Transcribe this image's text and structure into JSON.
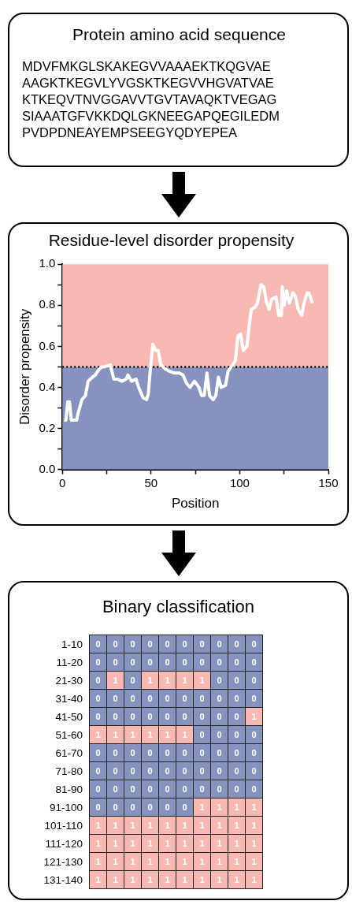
{
  "chart_data": [
    {
      "type": "other",
      "title": "Protein amino acid sequence",
      "annotations": [
        "MDVFMKGLSKAKEGVVAAAEKTKQGVAE",
        "AAGKTKEGVLYVGSKTKEGVVHGVATVAE",
        "KTKEQVTNVGGAVVTGVTAVAQKTVEGAG",
        "SIAAATGFVKKDQLGKNEEGAPQEGILEDM",
        "PVDPDNEAYEMPSEEGYQDYEPEA"
      ]
    },
    {
      "type": "line",
      "title": "Residue-level disorder propensity",
      "xlabel": "Position",
      "ylabel": "Disorder propensity",
      "xlim": [
        0,
        150
      ],
      "xticks": [
        0,
        {
          "value": 25,
          "label": null
        },
        50,
        {
          "value": 75,
          "label": null
        },
        100,
        {
          "value": 125,
          "label": null
        },
        150
      ],
      "ylim": [
        0,
        1
      ],
      "yticks": [
        {
          "value": 0,
          "label": "0.0"
        },
        {
          "value": 0.1,
          "label": null
        },
        0.2,
        {
          "value": 0.3,
          "label": null
        },
        0.4,
        {
          "value": 0.5,
          "label": null
        },
        0.6,
        {
          "value": 0.7,
          "label": null
        },
        0.8,
        {
          "value": 0.9,
          "label": null
        },
        {
          "value": 1,
          "label": "1.0"
        }
      ],
      "grid": false,
      "legend": false,
      "marker": "none",
      "line_style": "solid",
      "bands": [
        {
          "axis": "y",
          "from": 0,
          "to": 0.5,
          "color": "#8793bf"
        },
        {
          "axis": "y",
          "from": 0.5,
          "to": 1,
          "color": "#f8b9b2"
        }
      ],
      "ref_lines": [
        {
          "axis": "y",
          "value": 0.5,
          "color": "#000000",
          "line_style": "dotted"
        }
      ],
      "series": [
        {
          "color": "#ffffff",
          "x": [
            1,
            2,
            3,
            4,
            5,
            8,
            9,
            11,
            13,
            14.5,
            17,
            18.5,
            20,
            22,
            24,
            27,
            29,
            31,
            33.5,
            36,
            37,
            39,
            41.5,
            43,
            45.5,
            47.5,
            48.5,
            49.5,
            51,
            52.5,
            54,
            55.5,
            58,
            60,
            63,
            66,
            68,
            70,
            72,
            74.5,
            77,
            78.5,
            80,
            81.5,
            83,
            85,
            86.5,
            88,
            89.5,
            92,
            93.5,
            96,
            97.5,
            99,
            100.5,
            102,
            104,
            105.5,
            106.5,
            108.5,
            110,
            112,
            113.5,
            115,
            116.5,
            118,
            120.5,
            122,
            123.5,
            124,
            125,
            126.5,
            128,
            130,
            131.5,
            133,
            135,
            136,
            138,
            139,
            141
          ],
          "values": [
            0.24,
            0.24,
            0.33,
            0.33,
            0.24,
            0.24,
            0.28,
            0.34,
            0.36,
            0.43,
            0.45,
            0.46,
            0.48,
            0.5,
            0.5,
            0.51,
            0.44,
            0.44,
            0.43,
            0.44,
            0.46,
            0.43,
            0.44,
            0.4,
            0.35,
            0.34,
            0.37,
            0.48,
            0.61,
            0.58,
            0.58,
            0.51,
            0.49,
            0.48,
            0.47,
            0.47,
            0.46,
            0.42,
            0.4,
            0.43,
            0.4,
            0.36,
            0.36,
            0.47,
            0.36,
            0.34,
            0.36,
            0.45,
            0.4,
            0.41,
            0.48,
            0.51,
            0.53,
            0.65,
            0.66,
            0.58,
            0.6,
            0.71,
            0.78,
            0.79,
            0.81,
            0.9,
            0.89,
            0.82,
            0.78,
            0.83,
            0.84,
            0.75,
            0.75,
            0.89,
            0.8,
            0.87,
            0.81,
            0.86,
            0.84,
            0.78,
            0.75,
            0.8,
            0.86,
            0.86,
            0.81
          ]
        }
      ]
    },
    {
      "type": "heatmap",
      "title": "Binary classification",
      "data_labels": true,
      "colors": [
        "#8793bf",
        "#f8b9b2"
      ],
      "categories": [
        null,
        null,
        null,
        null,
        null,
        null,
        null,
        null,
        null,
        null
      ],
      "y_categories": [
        "1-10",
        "11-20",
        "21-30",
        "31-40",
        "41-50",
        "51-60",
        "61-70",
        "71-80",
        "81-90",
        "91-100",
        "101-110",
        "111-120",
        "121-130",
        "131-140"
      ],
      "cells": [
        [
          0,
          0,
          0,
          0,
          0,
          0,
          0,
          0,
          0,
          0
        ],
        [
          0,
          0,
          0,
          0,
          0,
          0,
          0,
          0,
          0,
          0
        ],
        [
          0,
          1,
          0,
          1,
          1,
          1,
          1,
          0,
          0,
          0
        ],
        [
          0,
          0,
          0,
          0,
          0,
          0,
          0,
          0,
          0,
          0
        ],
        [
          0,
          0,
          0,
          0,
          0,
          0,
          0,
          0,
          0,
          1
        ],
        [
          1,
          1,
          1,
          1,
          1,
          1,
          0,
          0,
          0,
          0
        ],
        [
          0,
          0,
          0,
          0,
          0,
          0,
          0,
          0,
          0,
          0
        ],
        [
          0,
          0,
          0,
          0,
          0,
          0,
          0,
          0,
          0,
          0
        ],
        [
          0,
          0,
          0,
          0,
          0,
          0,
          0,
          0,
          0,
          0
        ],
        [
          0,
          0,
          0,
          0,
          0,
          0,
          1,
          1,
          1,
          1
        ],
        [
          1,
          1,
          1,
          1,
          1,
          1,
          1,
          1,
          1,
          1
        ],
        [
          1,
          1,
          1,
          1,
          1,
          1,
          1,
          1,
          1,
          1
        ],
        [
          1,
          1,
          1,
          1,
          1,
          1,
          1,
          1,
          1,
          1
        ],
        [
          1,
          1,
          1,
          1,
          1,
          1,
          1,
          1,
          1,
          1
        ]
      ]
    }
  ]
}
